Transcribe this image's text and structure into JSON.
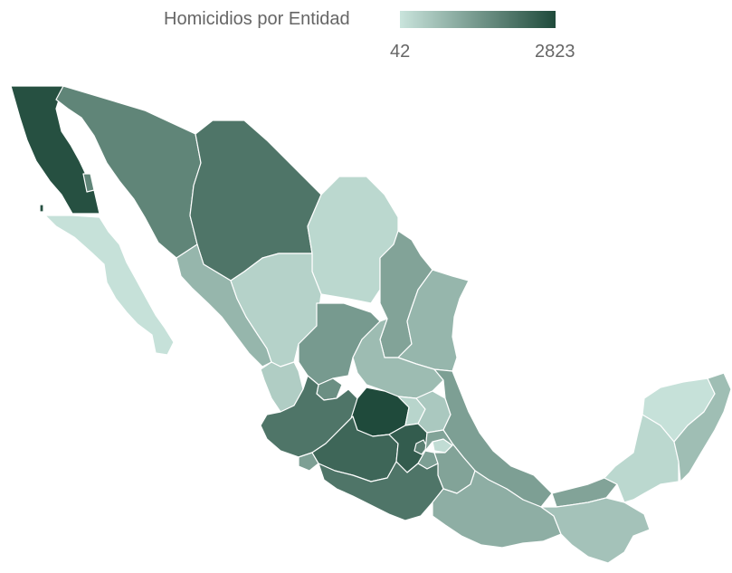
{
  "legend": {
    "title": "Homicidios por Entidad",
    "min": "42",
    "max": "2823",
    "color_low": "#c9e4dc",
    "color_high": "#1f4a3b"
  },
  "map_data": {
    "type": "choropleth",
    "region": "Mexico",
    "value_range": [
      42,
      2823
    ],
    "states": [
      {
        "id": "baja-california",
        "level": 0.96
      },
      {
        "id": "baja-california-sur",
        "level": 0.02
      },
      {
        "id": "sonora",
        "level": 0.62
      },
      {
        "id": "chihuahua",
        "level": 0.72
      },
      {
        "id": "coahuila",
        "level": 0.08
      },
      {
        "id": "nuevo-leon",
        "level": 0.42
      },
      {
        "id": "tamaulipas",
        "level": 0.3
      },
      {
        "id": "sinaloa",
        "level": 0.3
      },
      {
        "id": "durango",
        "level": 0.12
      },
      {
        "id": "zacatecas",
        "level": 0.48
      },
      {
        "id": "san-luis-potosi",
        "level": 0.26
      },
      {
        "id": "nayarit",
        "level": 0.15
      },
      {
        "id": "aguascalientes",
        "level": 0.55
      },
      {
        "id": "jalisco",
        "level": 0.72
      },
      {
        "id": "guanajuato",
        "level": 1.0
      },
      {
        "id": "queretaro",
        "level": 0.1
      },
      {
        "id": "hidalgo",
        "level": 0.18
      },
      {
        "id": "veracruz",
        "level": 0.45
      },
      {
        "id": "colima",
        "level": 0.45
      },
      {
        "id": "michoacan",
        "level": 0.82
      },
      {
        "id": "estado-de-mexico",
        "level": 0.88
      },
      {
        "id": "cdmx",
        "level": 0.65
      },
      {
        "id": "morelos",
        "level": 0.45
      },
      {
        "id": "tlaxcala",
        "level": 0.05
      },
      {
        "id": "puebla",
        "level": 0.42
      },
      {
        "id": "guerrero",
        "level": 0.72
      },
      {
        "id": "oaxaca",
        "level": 0.35
      },
      {
        "id": "tabasco",
        "level": 0.42
      },
      {
        "id": "chiapas",
        "level": 0.22
      },
      {
        "id": "campeche",
        "level": 0.08
      },
      {
        "id": "yucatan",
        "level": 0.02
      },
      {
        "id": "quintana-roo",
        "level": 0.25
      }
    ]
  }
}
